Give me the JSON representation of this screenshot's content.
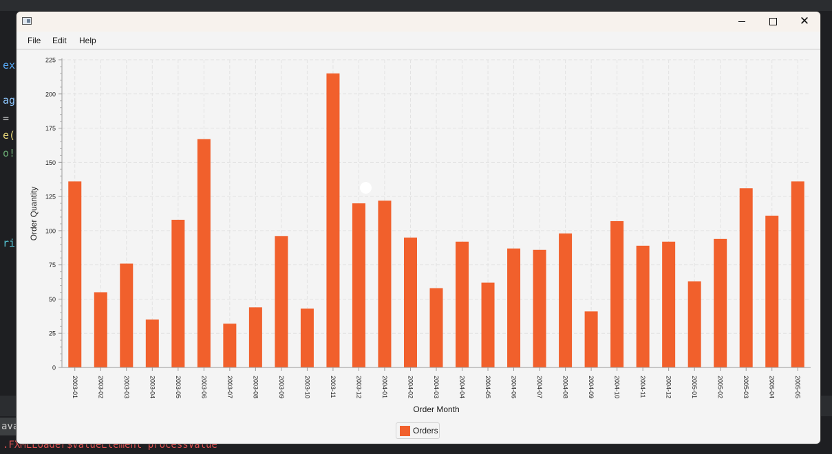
{
  "background": {
    "code_fragments": [
      "ext",
      "age",
      "= ",
      "e(",
      "o!",
      "ri",
      "ava"
    ],
    "error_line": ".FXMLLoader$ValueElement processValue"
  },
  "window": {
    "title": "",
    "icons": {
      "app": "app-window-icon",
      "minimize": "minimize-icon",
      "maximize": "maximize-icon",
      "close": "close-icon"
    }
  },
  "menu": {
    "items": [
      "File",
      "Edit",
      "Help"
    ]
  },
  "chart_data": {
    "type": "bar",
    "title": "",
    "xlabel": "Order Month",
    "ylabel": "Order Quantity",
    "ylim": [
      0,
      225
    ],
    "yticks": [
      0,
      25,
      50,
      75,
      100,
      125,
      150,
      175,
      200,
      225
    ],
    "grid": true,
    "legend_position": "bottom-center",
    "categories": [
      "2003-01",
      "2003-02",
      "2003-03",
      "2003-04",
      "2003-05",
      "2003-06",
      "2003-07",
      "2003-08",
      "2003-09",
      "2003-10",
      "2003-11",
      "2003-12",
      "2004-01",
      "2004-02",
      "2004-03",
      "2004-04",
      "2004-05",
      "2004-06",
      "2004-07",
      "2004-08",
      "2004-09",
      "2004-10",
      "2004-11",
      "2004-12",
      "2005-01",
      "2005-02",
      "2005-03",
      "2005-04",
      "2005-05"
    ],
    "series": [
      {
        "name": "Orders",
        "color": "#f1602c",
        "values": [
          136,
          55,
          76,
          35,
          108,
          167,
          32,
          44,
          96,
          43,
          215,
          120,
          122,
          95,
          58,
          92,
          62,
          87,
          86,
          98,
          41,
          107,
          89,
          92,
          63,
          94,
          131,
          111,
          136
        ]
      }
    ]
  }
}
